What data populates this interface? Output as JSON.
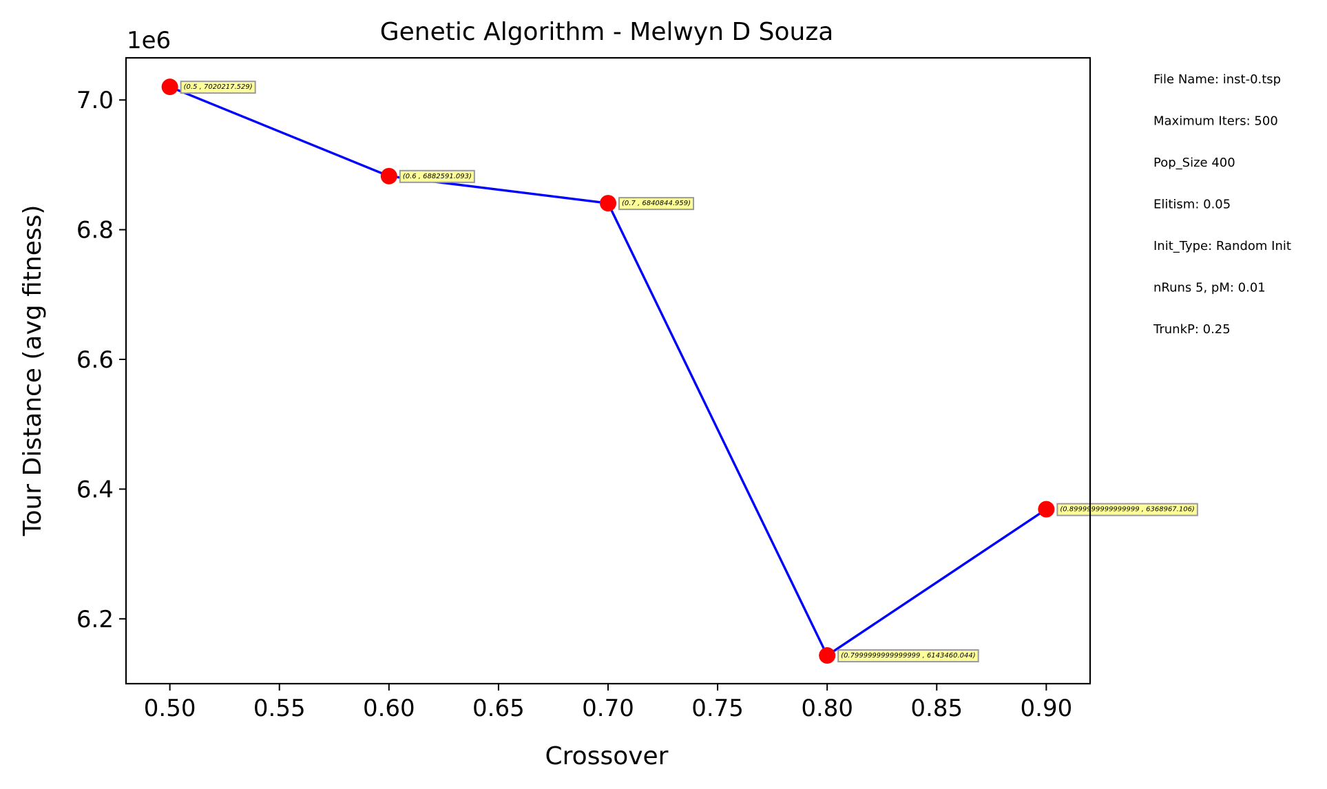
{
  "chart_data": {
    "type": "line",
    "title": "Genetic Algorithm - Melwyn D Souza",
    "xlabel": "Crossover",
    "ylabel": "Tour Distance (avg fitness)",
    "y_offset_label": "1e6",
    "xlim": [
      0.48,
      0.92
    ],
    "ylim": [
      6100000,
      7065000
    ],
    "x_ticks": [
      0.5,
      0.55,
      0.6,
      0.65,
      0.7,
      0.75,
      0.8,
      0.85,
      0.9
    ],
    "x_tick_labels": [
      "0.50",
      "0.55",
      "0.60",
      "0.65",
      "0.70",
      "0.75",
      "0.80",
      "0.85",
      "0.90"
    ],
    "y_ticks": [
      6200000,
      6400000,
      6600000,
      6800000,
      7000000
    ],
    "y_tick_labels": [
      "6.2",
      "6.4",
      "6.6",
      "6.8",
      "7.0"
    ],
    "grid": false,
    "series": [
      {
        "x": [
          0.5,
          0.6,
          0.7,
          0.8,
          0.9
        ],
        "y": [
          7020217.529,
          6882591.093,
          6840844.959,
          6143460.044,
          6368967.106
        ],
        "line_color": "#0000ff",
        "marker_color": "#ff0000"
      }
    ],
    "annotations": [
      "(0.5 , 7020217.529)",
      "(0.6 , 6882591.093)",
      "(0.7 , 6840844.959)",
      "(0.7999999999999999 , 6143460.044)",
      "(0.8999999999999999 , 6368967.106)"
    ],
    "side_notes": [
      "File Name: inst-0.tsp",
      "Maximum Iters: 500",
      "Pop_Size 400",
      "Elitism: 0.05",
      "Init_Type: Random Init",
      "nRuns 5, pM: 0.01",
      "TrunkP: 0.25"
    ],
    "annotation_box_fill": "#ffff99",
    "annotation_box_stroke": "#999999"
  }
}
